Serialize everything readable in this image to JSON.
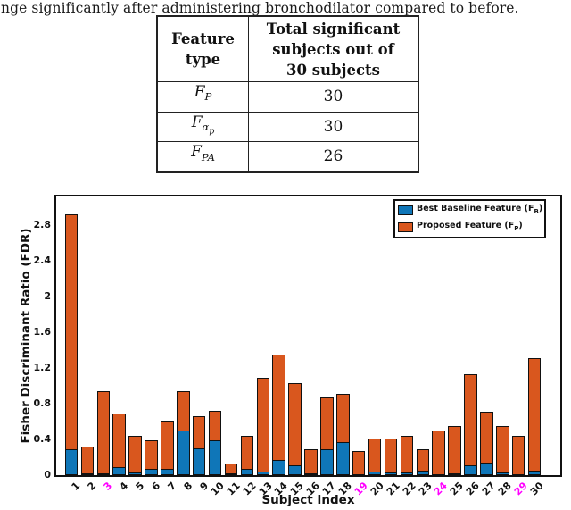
{
  "top_text": "nge significantly after administering bronchodilator compared to before.",
  "table": {
    "header_col1_lines": [
      "Feature",
      "type"
    ],
    "header_col2_lines": [
      "Total significant",
      "subjects out of",
      "30 subjects"
    ],
    "rows": [
      {
        "f": "F",
        "sub": "P",
        "subsub": "",
        "value": "30"
      },
      {
        "f": "F",
        "sub": "α",
        "subsub": "p",
        "value": "30"
      },
      {
        "f": "F",
        "sub": "PA",
        "subsub": "",
        "value": "26"
      }
    ]
  },
  "chart_data": {
    "type": "bar",
    "overlay": true,
    "title": "",
    "xlabel": "Subject Index",
    "ylabel": "Fisher Discriminant Ratio (FDR)",
    "ylim": [
      0,
      3.12
    ],
    "yticks": [
      0,
      0.4,
      0.8,
      1.2,
      1.6,
      2,
      2.4,
      2.8
    ],
    "ytick_labels": [
      "0",
      "0.4",
      "0.8",
      "1.2",
      "1.6",
      "2",
      "2.4",
      "2.8"
    ],
    "categories": [
      "1",
      "2",
      "3",
      "4",
      "5",
      "6",
      "7",
      "8",
      "9",
      "10",
      "11",
      "12",
      "13",
      "14",
      "15",
      "16",
      "17",
      "18",
      "19",
      "20",
      "21",
      "22",
      "23",
      "24",
      "25",
      "26",
      "27",
      "28",
      "29",
      "30"
    ],
    "highlighted_categories": [
      "3",
      "19",
      "24",
      "29"
    ],
    "highlight_color": "#ff00ff",
    "bar_edge_color": "#111111",
    "legend_position": "upper right",
    "grid": false,
    "series": [
      {
        "key": "baseline",
        "name": "Best Baseline Feature (F_B)",
        "label_pre": "Best Baseline Feature (F",
        "label_sub": "B",
        "label_post": ")",
        "color": "#0f76b8",
        "values": [
          0.29,
          0.02,
          0.02,
          0.09,
          0.03,
          0.07,
          0.07,
          0.5,
          0.3,
          0.39,
          0.02,
          0.07,
          0.04,
          0.17,
          0.11,
          0.02,
          0.29,
          0.37,
          0,
          0.04,
          0.03,
          0.03,
          0.05,
          0,
          0.02,
          0.11,
          0.14,
          0.03,
          0,
          0.05
        ]
      },
      {
        "key": "proposed",
        "name": "Proposed Feature (F_P)",
        "label_pre": "Proposed Feature (F",
        "label_sub": "P",
        "label_post": ")",
        "color": "#d9571e",
        "values": [
          2.92,
          0.32,
          0.94,
          0.69,
          0.44,
          0.39,
          0.61,
          0.94,
          0.66,
          0.72,
          0.13,
          0.44,
          1.09,
          1.35,
          1.03,
          0.29,
          0.87,
          0.91,
          0.27,
          0.41,
          0.41,
          0.44,
          0.29,
          0.5,
          0.55,
          1.13,
          0.71,
          0.55,
          0.44,
          1.31
        ]
      }
    ]
  }
}
